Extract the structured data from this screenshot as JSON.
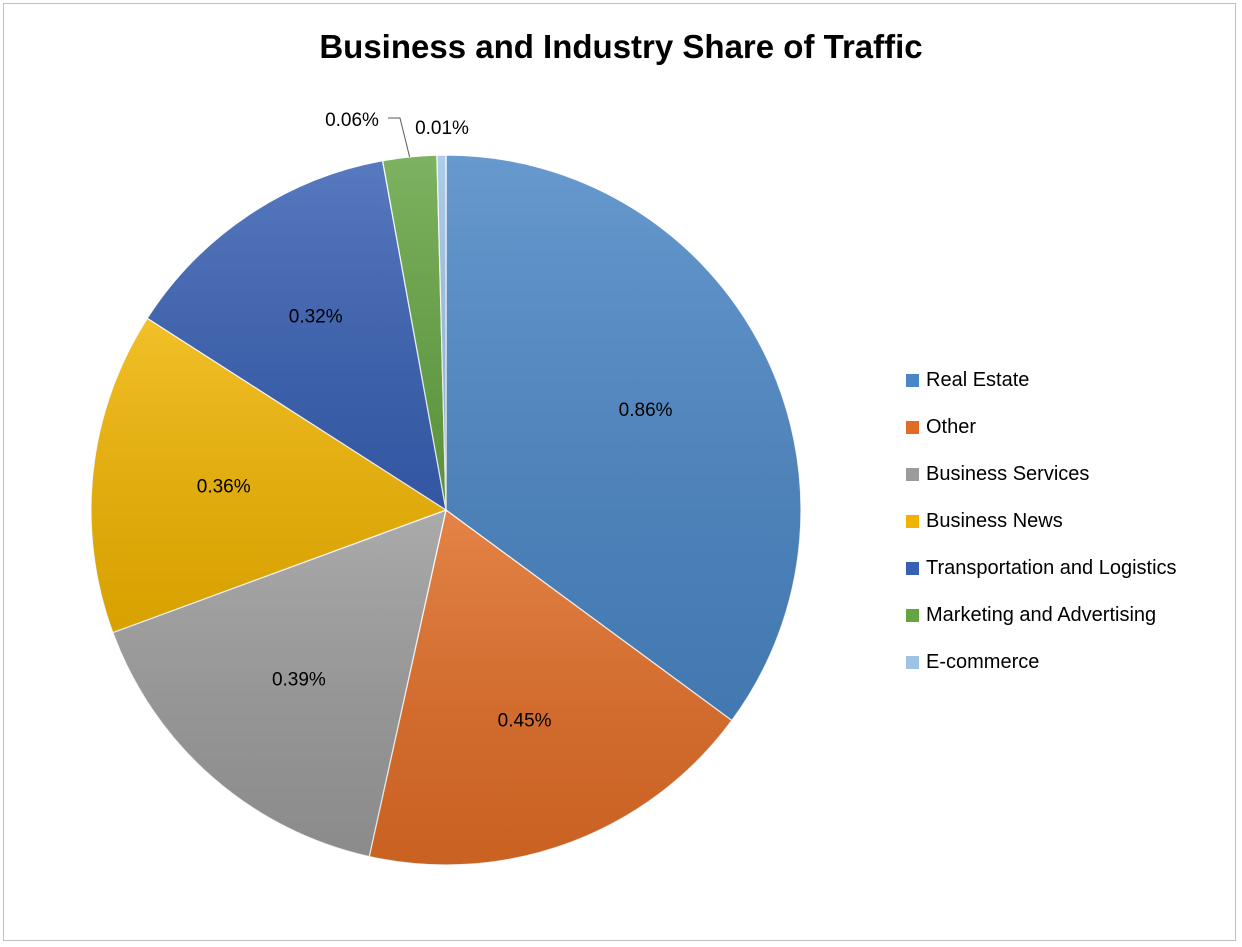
{
  "chart_data": {
    "type": "pie",
    "title": "Business and Industry Share of Traffic",
    "legend_position": "right",
    "start_angle_deg": 0,
    "direction": "clockwise",
    "slices": [
      {
        "label": "Real Estate",
        "value": 0.86,
        "value_label": "0.86%",
        "color": "#4a86c5"
      },
      {
        "label": "Other",
        "value": 0.45,
        "value_label": "0.45%",
        "color": "#e06c25"
      },
      {
        "label": "Business Services",
        "value": 0.39,
        "value_label": "0.39%",
        "color": "#9b9b9b"
      },
      {
        "label": "Business News",
        "value": 0.36,
        "value_label": "0.36%",
        "color": "#f0b400"
      },
      {
        "label": "Transportation and Logistics",
        "value": 0.32,
        "value_label": "0.32%",
        "color": "#3860b4"
      },
      {
        "label": "Marketing and Advertising",
        "value": 0.06,
        "value_label": "0.06%",
        "color": "#65a443"
      },
      {
        "label": "E-commerce",
        "value": 0.01,
        "value_label": "0.01%",
        "color": "#9dc3e6"
      }
    ]
  }
}
